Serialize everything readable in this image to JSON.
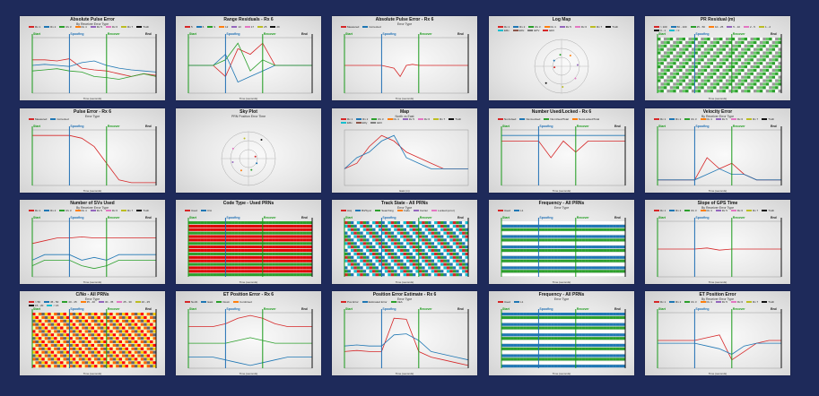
{
  "colors": {
    "background": "#1e2a5a",
    "start": "#1a9a1a",
    "spoofing": "#1f6fb4",
    "recover": "#1a9a1a",
    "end": "#111111"
  },
  "markers": {
    "start": "Start",
    "spoofing": "Spoofing",
    "recover": "Recover",
    "end": "End"
  },
  "chart_data": [
    {
      "type": "line",
      "title": "Absolute Pulse Error",
      "subtitle": "By Receiver Error Type",
      "xlabel": "Time (seconds)",
      "legend": [
        "Rx 1",
        "Rx 2",
        "Rx 3",
        "Rx 4",
        "Rx 5",
        "Rx 6",
        "Rx 7",
        "Truth"
      ],
      "x": [
        0,
        100,
        200,
        300,
        400,
        500,
        600,
        700,
        800,
        900,
        1000
      ],
      "series": [
        {
          "values": [
            0.6,
            0.6,
            0.58,
            0.62,
            0.45,
            0.42,
            0.4,
            0.35,
            0.3,
            0.35,
            0.32
          ]
        },
        {
          "values": [
            0.5,
            0.52,
            0.5,
            0.48,
            0.55,
            0.58,
            0.5,
            0.45,
            0.42,
            0.4,
            0.38
          ]
        },
        {
          "values": [
            0.4,
            0.42,
            0.44,
            0.4,
            0.38,
            0.3,
            0.28,
            0.25,
            0.3,
            0.35,
            0.3
          ]
        }
      ],
      "markers": [
        0,
        300,
        600,
        1000
      ],
      "show_markers": true
    },
    {
      "type": "line",
      "title": "Range Residuals - Rx 6",
      "subtitle": "",
      "xlabel": "Time (seconds)",
      "legend": [
        "5",
        "6",
        "9",
        "12",
        "13",
        "17",
        "25",
        "29"
      ],
      "x": [
        0,
        100,
        200,
        300,
        400,
        500,
        600,
        700,
        800,
        900,
        1000
      ],
      "series": [
        {
          "values": [
            0.5,
            0.5,
            0.5,
            0.3,
            0.8,
            0.7,
            0.9,
            0.5,
            0.5,
            0.5,
            0.5
          ]
        },
        {
          "values": [
            0.5,
            0.5,
            0.5,
            0.7,
            0.2,
            0.3,
            0.4,
            0.5,
            0.5,
            0.5,
            0.5
          ]
        },
        {
          "values": [
            0.5,
            0.5,
            0.5,
            0.6,
            0.9,
            0.4,
            0.6,
            0.5,
            0.5,
            0.5,
            0.5
          ]
        }
      ],
      "markers": [
        0,
        300,
        600,
        1000
      ],
      "show_markers": true
    },
    {
      "type": "line",
      "title": "Absolute Pulse Error - Rx 6",
      "subtitle": "Error Type",
      "xlabel": "Time (seconds)",
      "legend": [
        "Measured",
        "Corrected"
      ],
      "x": [
        0,
        100,
        200,
        300,
        400,
        450,
        500,
        550,
        600,
        700,
        800,
        900,
        1000
      ],
      "series": [
        {
          "values": [
            0.5,
            0.5,
            0.5,
            0.5,
            0.45,
            0.3,
            0.5,
            0.52,
            0.5,
            0.5,
            0.5,
            0.5,
            0.5
          ]
        }
      ],
      "markers": [
        0,
        300,
        600,
        1000
      ],
      "show_markers": true
    },
    {
      "type": "scatter",
      "title": "Log Map",
      "subtitle": "",
      "xlabel": "",
      "legend": [
        "Rx 1",
        "Rx 2",
        "Rx 3",
        "Rx 4",
        "Rx 5",
        "Rx 6",
        "Rx 7",
        "Truth",
        "ERx",
        "ERx",
        "EPV",
        "ERz"
      ],
      "x": [],
      "series": [],
      "markers": [],
      "show_markers": false,
      "polar": true
    },
    {
      "type": "heatmap",
      "title": "PR Residual (m)",
      "subtitle": "",
      "xlabel": "Time (seconds)",
      "legend": [
        "> 100",
        "50 - 100",
        "25 - 50",
        "10 - 25",
        "5 - 10",
        "2 - 5",
        "1 - 2",
        "0 - 1",
        "< 0"
      ],
      "x": [],
      "series": [],
      "markers": [
        0,
        300,
        600,
        1000
      ],
      "show_markers": true
    },
    {
      "type": "line",
      "title": "Pulse Error - Rx 6",
      "subtitle": "Error Type",
      "xlabel": "Time (seconds)",
      "legend": [
        "Measured",
        "Corrected"
      ],
      "x": [
        0,
        100,
        200,
        300,
        400,
        500,
        600,
        700,
        800,
        900,
        1000
      ],
      "series": [
        {
          "values": [
            0.9,
            0.9,
            0.9,
            0.9,
            0.85,
            0.7,
            0.4,
            0.1,
            0.05,
            0.05,
            0.05
          ]
        }
      ],
      "markers": [
        0,
        300,
        600,
        1000
      ],
      "show_markers": true
    },
    {
      "type": "scatter",
      "title": "Sky Plot",
      "subtitle": "PRN Position Error Time",
      "xlabel": "",
      "legend": [],
      "x": [],
      "series": [],
      "markers": [],
      "show_markers": false,
      "polar": true
    },
    {
      "type": "line",
      "title": "Map",
      "subtitle": "North vs East",
      "xlabel": "East (m)",
      "legend": [
        "Rx 1",
        "Rx 2",
        "Rx 3",
        "Rx 4",
        "Rx 5",
        "Rx 6",
        "Rx 7",
        "Truth",
        "ERx",
        "ERy",
        "ERz"
      ],
      "x": [
        0,
        1,
        2,
        3,
        4,
        5,
        6,
        7,
        8,
        9,
        10
      ],
      "series": [
        {
          "values": [
            0.3,
            0.4,
            0.7,
            0.9,
            0.8,
            0.6,
            0.5,
            0.4,
            0.3,
            0.3,
            0.3
          ]
        },
        {
          "values": [
            0.3,
            0.5,
            0.6,
            0.8,
            0.9,
            0.5,
            0.4,
            0.3,
            0.3,
            0.3,
            0.3
          ]
        }
      ],
      "markers": [],
      "show_markers": false
    },
    {
      "type": "line",
      "title": "Number Used/Locked - Rx 6",
      "subtitle": "",
      "xlabel": "Time (seconds)",
      "legend": [
        "NumUsed",
        "NumLocked",
        "NumUsed/Total",
        "NumLocked/Total"
      ],
      "x": [
        0,
        100,
        200,
        300,
        400,
        500,
        600,
        700,
        800,
        900,
        1000
      ],
      "series": [
        {
          "values": [
            0.8,
            0.8,
            0.8,
            0.8,
            0.5,
            0.8,
            0.6,
            0.8,
            0.8,
            0.8,
            0.8
          ]
        },
        {
          "values": [
            0.9,
            0.9,
            0.9,
            0.9,
            0.9,
            0.9,
            0.9,
            0.9,
            0.9,
            0.9,
            0.9
          ]
        }
      ],
      "markers": [
        0,
        300,
        600,
        1000
      ],
      "show_markers": true
    },
    {
      "type": "line",
      "title": "Velocity Error",
      "subtitle": "By Receiver Error Type",
      "xlabel": "Time (seconds)",
      "legend": [
        "Rx 1",
        "Rx 2",
        "Rx 3",
        "Rx 4",
        "Rx 5",
        "Rx 6",
        "Rx 7",
        "Truth"
      ],
      "x": [
        0,
        100,
        200,
        300,
        400,
        500,
        600,
        700,
        800,
        900,
        1000
      ],
      "series": [
        {
          "values": [
            0.1,
            0.1,
            0.1,
            0.1,
            0.5,
            0.3,
            0.4,
            0.2,
            0.1,
            0.1,
            0.1
          ]
        },
        {
          "values": [
            0.1,
            0.1,
            0.1,
            0.1,
            0.2,
            0.3,
            0.2,
            0.2,
            0.1,
            0.1,
            0.1
          ]
        }
      ],
      "markers": [
        0,
        300,
        600,
        1000
      ],
      "show_markers": true
    },
    {
      "type": "line",
      "title": "Number of SVs Used",
      "subtitle": "By Receiver Error Type",
      "xlabel": "Time (seconds)",
      "legend": [
        "Rx 1",
        "Rx 2",
        "Rx 3",
        "Rx 4",
        "Rx 5",
        "Rx 6",
        "Rx 7",
        "Truth"
      ],
      "x": [
        0,
        100,
        200,
        300,
        400,
        500,
        600,
        700,
        800,
        900,
        1000
      ],
      "series": [
        {
          "values": [
            0.6,
            0.65,
            0.7,
            0.7,
            0.72,
            0.7,
            0.7,
            0.7,
            0.7,
            0.7,
            0.7
          ]
        },
        {
          "values": [
            0.3,
            0.4,
            0.4,
            0.4,
            0.3,
            0.35,
            0.3,
            0.4,
            0.4,
            0.4,
            0.4
          ]
        },
        {
          "values": [
            0.2,
            0.3,
            0.3,
            0.3,
            0.2,
            0.15,
            0.2,
            0.3,
            0.3,
            0.3,
            0.3
          ]
        }
      ],
      "markers": [
        0,
        300,
        600,
        1000
      ],
      "show_markers": true
    },
    {
      "type": "heatmap",
      "title": "Code Type - Used PRNs",
      "subtitle": "",
      "xlabel": "Time (seconds)",
      "legend": [
        "Used",
        "C/A"
      ],
      "x": [],
      "series": [],
      "markers": [
        0,
        300,
        600,
        1000
      ],
      "show_markers": true
    },
    {
      "type": "heatmap",
      "title": "Track State - All PRNs",
      "subtitle": "Error Type",
      "xlabel": "Time (seconds)",
      "legend": [
        "Acq",
        "Bit/Sync",
        "Searching",
        "Code",
        "Carrier",
        "Locked (error)"
      ],
      "x": [],
      "series": [],
      "markers": [
        0,
        300,
        600,
        1000
      ],
      "show_markers": true
    },
    {
      "type": "heatmap",
      "title": "Frequency - All PRNs",
      "subtitle": "Error Type",
      "xlabel": "Time (seconds)",
      "legend": [
        "Used",
        "L1"
      ],
      "x": [],
      "series": [],
      "markers": [
        0,
        300,
        600,
        1000
      ],
      "show_markers": true
    },
    {
      "type": "line",
      "title": "Slope of GPS Time",
      "subtitle": "By Receiver Error Type",
      "xlabel": "Time (seconds)",
      "legend": [
        "Rx 1",
        "Rx 2",
        "Rx 3",
        "Rx 4",
        "Rx 5",
        "Rx 6",
        "Rx 7",
        "Truth"
      ],
      "x": [
        0,
        100,
        200,
        300,
        400,
        500,
        600,
        700,
        800,
        900,
        1000
      ],
      "series": [
        {
          "values": [
            0.5,
            0.5,
            0.5,
            0.5,
            0.52,
            0.48,
            0.5,
            0.5,
            0.5,
            0.5,
            0.5
          ]
        }
      ],
      "markers": [
        0,
        300,
        600,
        1000
      ],
      "show_markers": true
    },
    {
      "type": "heatmap",
      "title": "C/No - All PRNs",
      "subtitle": "Error Type",
      "xlabel": "Time (seconds)",
      "legend": [
        "> 50",
        "45 - 50",
        "40 - 45",
        "35 - 40",
        "30 - 35",
        "25 - 30",
        "20 - 25",
        "15 - 20",
        "< 15"
      ],
      "x": [],
      "series": [],
      "markers": [
        0,
        300,
        600,
        1000
      ],
      "show_markers": true
    },
    {
      "type": "line",
      "title": "ET Position Error - Rx 6",
      "subtitle": "",
      "xlabel": "Time (seconds)",
      "legend": [
        "North",
        "East",
        "Down",
        "Combined"
      ],
      "x": [
        0,
        100,
        200,
        300,
        400,
        500,
        600,
        700,
        800,
        900,
        1000
      ],
      "series": [
        {
          "values": [
            0.75,
            0.75,
            0.75,
            0.8,
            0.9,
            0.95,
            0.9,
            0.8,
            0.75,
            0.75,
            0.75
          ]
        },
        {
          "values": [
            0.2,
            0.2,
            0.2,
            0.15,
            0.1,
            0.05,
            0.1,
            0.15,
            0.2,
            0.2,
            0.2
          ]
        },
        {
          "values": [
            0.45,
            0.45,
            0.45,
            0.45,
            0.5,
            0.55,
            0.5,
            0.45,
            0.45,
            0.45,
            0.45
          ]
        }
      ],
      "markers": [
        0,
        300,
        600,
        1000
      ],
      "show_markers": true
    },
    {
      "type": "line",
      "title": "Position Error Estimate - Rx 6",
      "subtitle": "Error Type",
      "xlabel": "Time (seconds)",
      "legend": [
        "Pos Error",
        "Estimated Error",
        "CEA"
      ],
      "x": [
        0,
        100,
        200,
        300,
        400,
        500,
        600,
        700,
        800,
        900,
        1000
      ],
      "series": [
        {
          "values": [
            0.3,
            0.32,
            0.3,
            0.3,
            0.9,
            0.88,
            0.3,
            0.2,
            0.15,
            0.1,
            0.05
          ]
        },
        {
          "values": [
            0.4,
            0.42,
            0.4,
            0.4,
            0.6,
            0.62,
            0.5,
            0.3,
            0.25,
            0.2,
            0.15
          ]
        }
      ],
      "markers": [
        0,
        300,
        600,
        1000
      ],
      "show_markers": true
    },
    {
      "type": "heatmap",
      "title": "Frequency - All PRNs",
      "subtitle": "Error Type",
      "xlabel": "Time (seconds)",
      "legend": [
        "Used",
        "L1"
      ],
      "x": [],
      "series": [],
      "markers": [
        0,
        300,
        600,
        1000
      ],
      "show_markers": true
    },
    {
      "type": "line",
      "title": "ET Position Error",
      "subtitle": "By Receiver Error Type",
      "xlabel": "Time (seconds)",
      "legend": [
        "Rx 1",
        "Rx 2",
        "Rx 3",
        "Rx 4",
        "Rx 5",
        "Rx 6",
        "Rx 7",
        "Truth"
      ],
      "x": [
        0,
        100,
        200,
        300,
        400,
        500,
        600,
        700,
        800,
        900,
        1000
      ],
      "series": [
        {
          "values": [
            0.5,
            0.5,
            0.5,
            0.5,
            0.55,
            0.6,
            0.15,
            0.3,
            0.45,
            0.5,
            0.5
          ]
        },
        {
          "values": [
            0.45,
            0.45,
            0.45,
            0.45,
            0.4,
            0.35,
            0.25,
            0.4,
            0.45,
            0.45,
            0.45
          ]
        }
      ],
      "markers": [
        0,
        300,
        600,
        1000
      ],
      "show_markers": true
    }
  ]
}
